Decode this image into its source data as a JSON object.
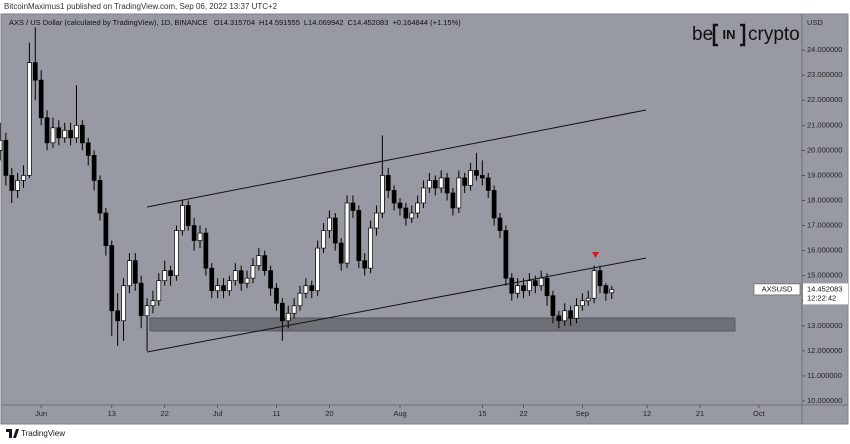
{
  "header": {
    "publisher": "BitcoinMaximus1 published on TradingView.com, Sep 06, 2022 13:37 UTC+2"
  },
  "logo": {
    "pre": "be",
    "mid": "IN",
    "post": "crypto"
  },
  "footer": {
    "brand": "TradingView"
  },
  "chart_data": {
    "type": "candlestick",
    "title": "AXS / US Dollar (calculated by TradingView), 1D, BINANCE",
    "ohlc_legend": [
      "O14.315704",
      "H14.591555",
      "L14.069942",
      "C14.452083",
      "+0.164844 (+1.15%)"
    ],
    "y_axis_label": "USD",
    "x": [
      "2022-05-25",
      "2022-05-26",
      "2022-05-27",
      "2022-05-28",
      "2022-05-29",
      "2022-05-30",
      "2022-05-31",
      "2022-06-01",
      "2022-06-02",
      "2022-06-03",
      "2022-06-04",
      "2022-06-05",
      "2022-06-06",
      "2022-06-07",
      "2022-06-08",
      "2022-06-09",
      "2022-06-10",
      "2022-06-11",
      "2022-06-12",
      "2022-06-13",
      "2022-06-14",
      "2022-06-15",
      "2022-06-16",
      "2022-06-17",
      "2022-06-18",
      "2022-06-19",
      "2022-06-20",
      "2022-06-21",
      "2022-06-22",
      "2022-06-23",
      "2022-06-24",
      "2022-06-25",
      "2022-06-26",
      "2022-06-27",
      "2022-06-28",
      "2022-06-29",
      "2022-06-30",
      "2022-07-01",
      "2022-07-02",
      "2022-07-03",
      "2022-07-04",
      "2022-07-05",
      "2022-07-06",
      "2022-07-07",
      "2022-07-08",
      "2022-07-09",
      "2022-07-10",
      "2022-07-11",
      "2022-07-12",
      "2022-07-13",
      "2022-07-14",
      "2022-07-15",
      "2022-07-16",
      "2022-07-17",
      "2022-07-18",
      "2022-07-19",
      "2022-07-20",
      "2022-07-21",
      "2022-07-22",
      "2022-07-23",
      "2022-07-24",
      "2022-07-25",
      "2022-07-26",
      "2022-07-27",
      "2022-07-28",
      "2022-07-29",
      "2022-07-30",
      "2022-07-31",
      "2022-08-01",
      "2022-08-02",
      "2022-08-03",
      "2022-08-04",
      "2022-08-05",
      "2022-08-06",
      "2022-08-07",
      "2022-08-08",
      "2022-08-09",
      "2022-08-10",
      "2022-08-11",
      "2022-08-12",
      "2022-08-13",
      "2022-08-14",
      "2022-08-15",
      "2022-08-16",
      "2022-08-17",
      "2022-08-18",
      "2022-08-19",
      "2022-08-20",
      "2022-08-21",
      "2022-08-22",
      "2022-08-23",
      "2022-08-24",
      "2022-08-25",
      "2022-08-26",
      "2022-08-27",
      "2022-08-28",
      "2022-08-29",
      "2022-08-30",
      "2022-08-31",
      "2022-09-01",
      "2022-09-02",
      "2022-09-03",
      "2022-09-04",
      "2022-09-05",
      "2022-09-06"
    ],
    "open": [
      20.0,
      20.4,
      19.0,
      18.4,
      18.8,
      19.0,
      23.5,
      22.8,
      21.3,
      20.3,
      20.9,
      20.5,
      20.8,
      20.5,
      21.0,
      20.3,
      19.8,
      18.8,
      17.5,
      16.2,
      13.6,
      13.2,
      14.6,
      15.6,
      14.7,
      13.4,
      13.8,
      14.0,
      14.8,
      15.2,
      15.0,
      16.8,
      17.8,
      17.0,
      16.4,
      16.7,
      15.3,
      14.4,
      14.6,
      14.4,
      14.8,
      15.2,
      14.7,
      14.9,
      15.4,
      15.8,
      15.2,
      14.5,
      13.9,
      13.2,
      13.5,
      13.8,
      14.3,
      14.6,
      14.4,
      16.1,
      16.8,
      17.3,
      16.3,
      15.5,
      17.9,
      17.6,
      15.6,
      15.3,
      16.9,
      17.5,
      19.0,
      18.4,
      17.9,
      17.7,
      17.3,
      17.5,
      17.9,
      18.5,
      18.8,
      18.5,
      18.9,
      18.3,
      17.7,
      18.9,
      18.6,
      19.2,
      19.0,
      18.9,
      18.4,
      17.3,
      16.8,
      14.9,
      14.3,
      14.6,
      14.4,
      14.8,
      14.6,
      14.9,
      14.2,
      13.4,
      13.2,
      13.6,
      13.3,
      13.8,
      14.0,
      14.1,
      15.2,
      14.6,
      14.315704
    ],
    "high": [
      21.1,
      20.7,
      19.3,
      19.1,
      19.4,
      24.3,
      24.9,
      23.2,
      21.6,
      21.3,
      21.2,
      21.1,
      21.1,
      22.6,
      21.2,
      20.5,
      20.0,
      19.0,
      17.7,
      16.4,
      14.3,
      14.9,
      15.9,
      15.9,
      15.0,
      14.1,
      14.4,
      15.1,
      15.6,
      15.4,
      17.0,
      18.0,
      18.0,
      17.3,
      17.0,
      16.9,
      15.5,
      14.9,
      14.9,
      15.0,
      15.5,
      15.4,
      15.2,
      15.7,
      16.1,
      16.0,
      15.4,
      14.7,
      14.1,
      13.8,
      14.1,
      14.6,
      14.9,
      14.8,
      16.4,
      17.1,
      17.6,
      17.5,
      16.5,
      18.2,
      18.2,
      17.8,
      15.9,
      17.2,
      17.8,
      20.6,
      19.3,
      18.6,
      18.1,
      17.9,
      17.8,
      18.2,
      18.8,
      19.1,
      19.0,
      19.2,
      19.1,
      18.5,
      19.2,
      19.1,
      19.5,
      19.9,
      19.6,
      19.1,
      18.6,
      17.5,
      17.0,
      15.1,
      14.9,
      14.9,
      15.1,
      15.0,
      15.2,
      15.1,
      14.4,
      13.6,
      13.9,
      13.8,
      14.1,
      14.3,
      14.4,
      15.4,
      15.4,
      14.7,
      14.591555
    ],
    "low": [
      19.6,
      18.6,
      17.9,
      18.1,
      18.5,
      18.9,
      22.0,
      21.0,
      20.0,
      20.1,
      20.2,
      20.3,
      20.2,
      20.3,
      20.0,
      19.4,
      18.4,
      17.2,
      15.8,
      12.6,
      12.2,
      12.4,
      14.3,
      14.4,
      12.9,
      12.0,
      13.5,
      13.8,
      14.6,
      14.6,
      14.8,
      16.6,
      16.8,
      16.0,
      16.1,
      15.0,
      14.1,
      14.1,
      14.1,
      14.2,
      14.6,
      14.4,
      14.5,
      14.7,
      15.2,
      15.0,
      14.2,
      13.6,
      12.4,
      12.9,
      13.3,
      13.6,
      14.1,
      14.1,
      14.2,
      15.9,
      16.5,
      16.0,
      15.2,
      15.3,
      17.3,
      15.3,
      15.0,
      15.1,
      16.6,
      17.3,
      18.1,
      17.6,
      17.4,
      17.0,
      17.1,
      17.3,
      17.7,
      18.3,
      18.2,
      18.3,
      18.0,
      17.4,
      17.5,
      18.3,
      18.4,
      18.8,
      18.6,
      18.1,
      17.0,
      16.5,
      14.6,
      14.0,
      14.1,
      14.1,
      14.2,
      14.3,
      14.4,
      13.8,
      13.1,
      12.9,
      13.0,
      13.0,
      13.1,
      13.6,
      13.8,
      13.9,
      14.3,
      14.0,
      14.069942
    ],
    "close": [
      20.4,
      19.0,
      18.4,
      18.8,
      19.0,
      23.5,
      22.8,
      21.3,
      20.3,
      20.9,
      20.5,
      20.8,
      20.5,
      21.0,
      20.3,
      19.8,
      18.8,
      17.5,
      16.2,
      13.6,
      13.2,
      14.6,
      15.6,
      14.7,
      13.4,
      13.8,
      14.0,
      14.8,
      15.2,
      15.0,
      16.8,
      17.8,
      17.0,
      16.4,
      16.7,
      15.3,
      14.4,
      14.6,
      14.4,
      14.8,
      15.2,
      14.7,
      14.9,
      15.4,
      15.8,
      15.2,
      14.5,
      13.9,
      13.2,
      13.5,
      13.8,
      14.3,
      14.6,
      14.4,
      16.1,
      16.8,
      17.3,
      16.3,
      15.5,
      17.9,
      17.6,
      15.6,
      15.3,
      16.9,
      17.5,
      19.0,
      18.4,
      17.9,
      17.7,
      17.3,
      17.5,
      17.9,
      18.5,
      18.8,
      18.5,
      18.9,
      18.3,
      17.7,
      18.9,
      18.6,
      19.2,
      19.0,
      18.9,
      18.4,
      17.3,
      16.8,
      14.9,
      14.3,
      14.6,
      14.4,
      14.8,
      14.6,
      14.9,
      14.2,
      13.4,
      13.2,
      13.6,
      13.3,
      13.8,
      14.0,
      14.1,
      15.2,
      14.6,
      14.3,
      14.452083
    ],
    "up_color": "#ffffff",
    "down_color": "#000000",
    "wick_color": "#000000",
    "xlim": [
      "2022-05-25",
      "2022-10-08"
    ],
    "xticks": [
      {
        "value": "2022-06-01",
        "label": "Jun"
      },
      {
        "value": "2022-06-13",
        "label": "13"
      },
      {
        "value": "2022-06-22",
        "label": "22"
      },
      {
        "value": "2022-07-01",
        "label": "Jul"
      },
      {
        "value": "2022-07-11",
        "label": "11"
      },
      {
        "value": "2022-07-20",
        "label": "20"
      },
      {
        "value": "2022-08-01",
        "label": "Aug"
      },
      {
        "value": "2022-08-15",
        "label": "15"
      },
      {
        "value": "2022-08-22",
        "label": "22"
      },
      {
        "value": "2022-09-01",
        "label": "Sep"
      },
      {
        "value": "2022-09-12",
        "label": "12"
      },
      {
        "value": "2022-09-21",
        "label": "21"
      },
      {
        "value": "2022-10-01",
        "label": "Oct"
      }
    ],
    "ylim": [
      9.84,
      25.4
    ],
    "yticks": [
      {
        "value": 10,
        "label": "10.000000"
      },
      {
        "value": 11,
        "label": "11.000000"
      },
      {
        "value": 12,
        "label": "12.000000"
      },
      {
        "value": 13,
        "label": "13.000000"
      },
      {
        "value": 14,
        "label": "14.000000"
      },
      {
        "value": 15,
        "label": "15.000000"
      },
      {
        "value": 16,
        "label": "16.000000"
      },
      {
        "value": 17,
        "label": "17.000000"
      },
      {
        "value": 18,
        "label": "18.000000"
      },
      {
        "value": 19,
        "label": "19.000000"
      },
      {
        "value": 20,
        "label": "20.000000"
      },
      {
        "value": 21,
        "label": "21.000000"
      },
      {
        "value": 22,
        "label": "22.000000"
      },
      {
        "value": 23,
        "label": "23.000000"
      },
      {
        "value": 24,
        "label": "24.000000"
      }
    ],
    "grid": false,
    "last_price": {
      "symbol": "AXSUSD",
      "value": 14.452083,
      "label": "14.452083",
      "countdown": "12:22:42"
    }
  }
}
